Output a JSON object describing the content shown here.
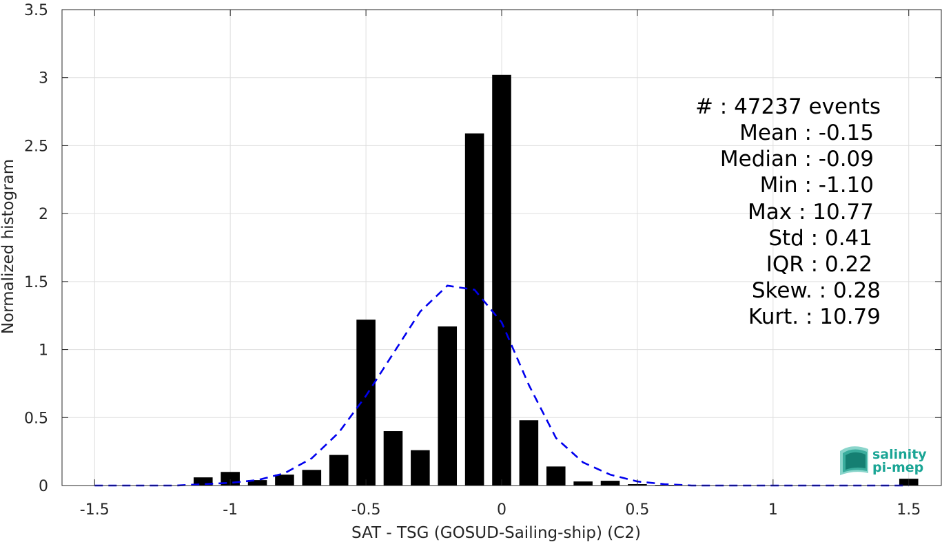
{
  "chart_data": {
    "type": "bar",
    "xlabel": "SAT - TSG (GOSUD-Sailing-ship) (C2)",
    "ylabel": "Normalized histogram",
    "xlim": [
      -1.62,
      1.62
    ],
    "ylim": [
      0,
      3.5
    ],
    "x_ticks": [
      -1.5,
      -1,
      -0.5,
      0,
      0.5,
      1,
      1.5
    ],
    "x_tick_labels": [
      "-1.5",
      "-1",
      "-0.5",
      "0",
      "0.5",
      "1",
      "1.5"
    ],
    "y_ticks": [
      0,
      0.5,
      1,
      1.5,
      2,
      2.5,
      3,
      3.5
    ],
    "y_tick_labels": [
      "0",
      "0.5",
      "1",
      "1.5",
      "2",
      "2.5",
      "3",
      "3.5"
    ],
    "grid": true,
    "bar_width": 0.07,
    "bar_color": "#000000",
    "bins": {
      "x": [
        -1.1,
        -1.0,
        -0.9,
        -0.8,
        -0.7,
        -0.6,
        -0.5,
        -0.4,
        -0.3,
        -0.2,
        -0.1,
        0.0,
        0.1,
        0.2,
        0.3,
        0.4,
        0.5,
        0.6,
        0.7,
        0.8,
        0.9,
        1.0,
        1.1,
        1.2,
        1.3,
        1.4,
        1.5
      ],
      "values": [
        0.06,
        0.1,
        0.04,
        0.08,
        0.115,
        0.225,
        1.22,
        0.4,
        0.26,
        1.17,
        2.59,
        3.02,
        0.48,
        0.14,
        0.03,
        0.035,
        0.01,
        0.005,
        0,
        0,
        0,
        0,
        0,
        0,
        0,
        0,
        0.05
      ]
    },
    "fit_curve": {
      "style": "dashed",
      "color": "#0000ee",
      "x": [
        -1.5,
        -1.4,
        -1.3,
        -1.2,
        -1.1,
        -1.0,
        -0.9,
        -0.8,
        -0.7,
        -0.6,
        -0.5,
        -0.4,
        -0.3,
        -0.2,
        -0.1,
        0.0,
        0.1,
        0.2,
        0.3,
        0.4,
        0.5,
        0.6,
        0.7,
        0.8,
        0.9,
        1.0,
        1.1,
        1.2,
        1.3,
        1.4,
        1.5
      ],
      "y": [
        0.0,
        0.0,
        0.0,
        0.0,
        0.01,
        0.02,
        0.04,
        0.09,
        0.2,
        0.39,
        0.66,
        0.97,
        1.28,
        1.47,
        1.44,
        1.2,
        0.74,
        0.35,
        0.17,
        0.08,
        0.03,
        0.01,
        0.0,
        0.0,
        0.0,
        0.0,
        0.0,
        0.0,
        0.0,
        0.0,
        0.0
      ]
    }
  },
  "stats": [
    "#  : 47237 events",
    "Mean : -0.15",
    "Median : -0.09",
    "Min : -1.10",
    "Max : 10.77",
    "Std : 0.41",
    "IQR : 0.22",
    "Skew. : 0.28",
    "Kurt. : 10.79"
  ],
  "logo": {
    "line1": "salinity",
    "line2": "pi-mep",
    "color": "#1aa595"
  }
}
